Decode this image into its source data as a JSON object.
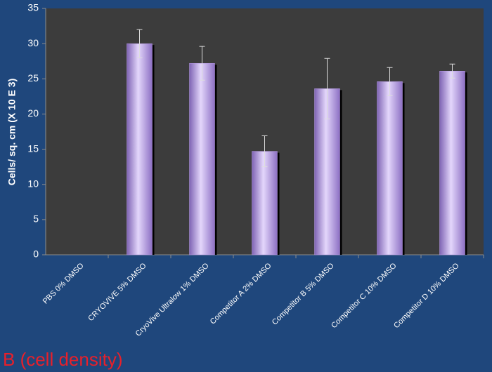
{
  "chart_data": {
    "type": "bar",
    "ylabel": "Cells/ sq. cm (X 10 E 3)",
    "caption": "B (cell density)",
    "categories": [
      "PBS 0% DMSO",
      "CRYOVIVE 5% DMSO",
      "CryoVive Ultralow 1% DMSO",
      "Competitor A 2% DMSO",
      "Competitor B 5% DMSO",
      "Competitor C 10% DMSO",
      "Competitor D 10% DMSO"
    ],
    "values": [
      0,
      30,
      27.2,
      14.7,
      23.6,
      24.6,
      26.1
    ],
    "errors": [
      null,
      2,
      2.4,
      2.2,
      4.3,
      2,
      1
    ],
    "color": "#b79ae6",
    "ylim": [
      0,
      35
    ],
    "yticks": [
      0,
      5,
      10,
      15,
      20,
      25,
      30,
      35
    ],
    "grid": false
  }
}
